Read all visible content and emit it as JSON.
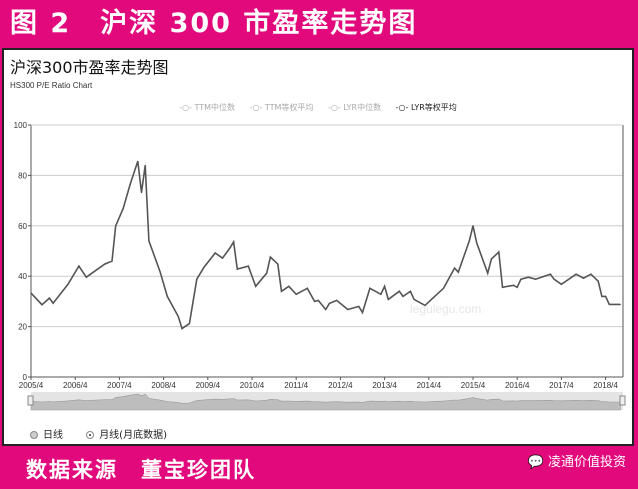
{
  "banner_title": "图 2　沪深 300 市盈率走势图",
  "footer": {
    "source": "数据来源　董宝珍团队",
    "wechat_account": "凌通价值投资",
    "wechat_icon": "wechat-icon"
  },
  "colors": {
    "brand": "#e2097d",
    "line": "#555555",
    "grid": "#cccccc"
  },
  "radio": {
    "daily": "日线",
    "monthly": "月线(月底数据)",
    "selected": "monthly"
  },
  "watermark": "legulegu.com",
  "chart_data": {
    "type": "line",
    "title": "沪深300市盈率走势图",
    "subtitle": "HS300 P/E Ratio Chart",
    "legend": [
      {
        "name": "TTM中位数",
        "active": false
      },
      {
        "name": "TTM等权平均",
        "active": false
      },
      {
        "name": "LYR中位数",
        "active": false
      },
      {
        "name": "LYR等权平均",
        "active": true
      }
    ],
    "legend_position": "top-center",
    "ylim": [
      0,
      100
    ],
    "yticks": [
      0,
      20,
      40,
      60,
      80,
      100
    ],
    "xlim": [
      "2005-04",
      "2018-09"
    ],
    "xticks": [
      "2005/4",
      "2006/4",
      "2007/4",
      "2008/4",
      "2009/4",
      "2010/4",
      "2011/4",
      "2012/4",
      "2013/4",
      "2014/4",
      "2015/4",
      "2016/4",
      "2017/4",
      "2018/4"
    ],
    "grid": true,
    "series": [
      {
        "name": "LYR等权平均",
        "x": [
          "2005-04",
          "2005-07",
          "2005-09",
          "2005-10",
          "2006-02",
          "2006-05",
          "2006-07",
          "2006-12",
          "2007-02",
          "2007-03",
          "2007-05",
          "2007-07",
          "2007-09",
          "2007-10",
          "2007-11",
          "2007-12",
          "2008-03",
          "2008-05",
          "2008-08",
          "2008-09",
          "2008-11",
          "2009-01",
          "2009-03",
          "2009-06",
          "2009-08",
          "2009-10",
          "2009-11",
          "2009-12",
          "2010-03",
          "2010-05",
          "2010-08",
          "2010-09",
          "2010-11",
          "2010-12",
          "2011-02",
          "2011-04",
          "2011-07",
          "2011-09",
          "2011-10",
          "2011-12",
          "2012-01",
          "2012-03",
          "2012-06",
          "2012-09",
          "2012-10",
          "2012-12",
          "2013-03",
          "2013-04",
          "2013-05",
          "2013-08",
          "2013-09",
          "2013-11",
          "2013-12",
          "2014-03",
          "2014-05",
          "2014-08",
          "2014-11",
          "2014-12",
          "2015-03",
          "2015-04",
          "2015-05",
          "2015-08",
          "2015-09",
          "2015-11",
          "2015-12",
          "2016-03",
          "2016-04",
          "2016-05",
          "2016-07",
          "2016-09",
          "2017-01",
          "2017-02",
          "2017-04",
          "2017-08",
          "2017-10",
          "2017-12",
          "2018-02",
          "2018-03",
          "2018-04",
          "2018-05",
          "2018-08"
        ],
        "y": [
          33.3,
          28.7,
          31.3,
          29.3,
          36.7,
          44,
          39.6,
          44.8,
          46,
          60,
          66.8,
          76.8,
          85.6,
          73.2,
          84,
          54,
          42,
          32,
          24,
          19.2,
          21.2,
          38.8,
          43.6,
          49.2,
          47.2,
          51.2,
          53.6,
          42.8,
          44,
          36,
          41.2,
          47.6,
          44.8,
          34,
          36,
          32.8,
          35.2,
          30,
          30.4,
          26.8,
          29.2,
          30.4,
          26.8,
          28,
          25.6,
          35.2,
          32.8,
          36,
          30.8,
          34,
          32,
          34,
          30.8,
          28.4,
          31.2,
          35.2,
          43.2,
          41.6,
          54,
          60,
          53.2,
          41.2,
          46.8,
          49.6,
          35.6,
          36.4,
          35.6,
          38.8,
          39.6,
          38.8,
          40.8,
          38.8,
          36.8,
          40.8,
          39.2,
          40.8,
          38,
          32,
          32,
          28.8,
          28.8
        ]
      }
    ]
  }
}
